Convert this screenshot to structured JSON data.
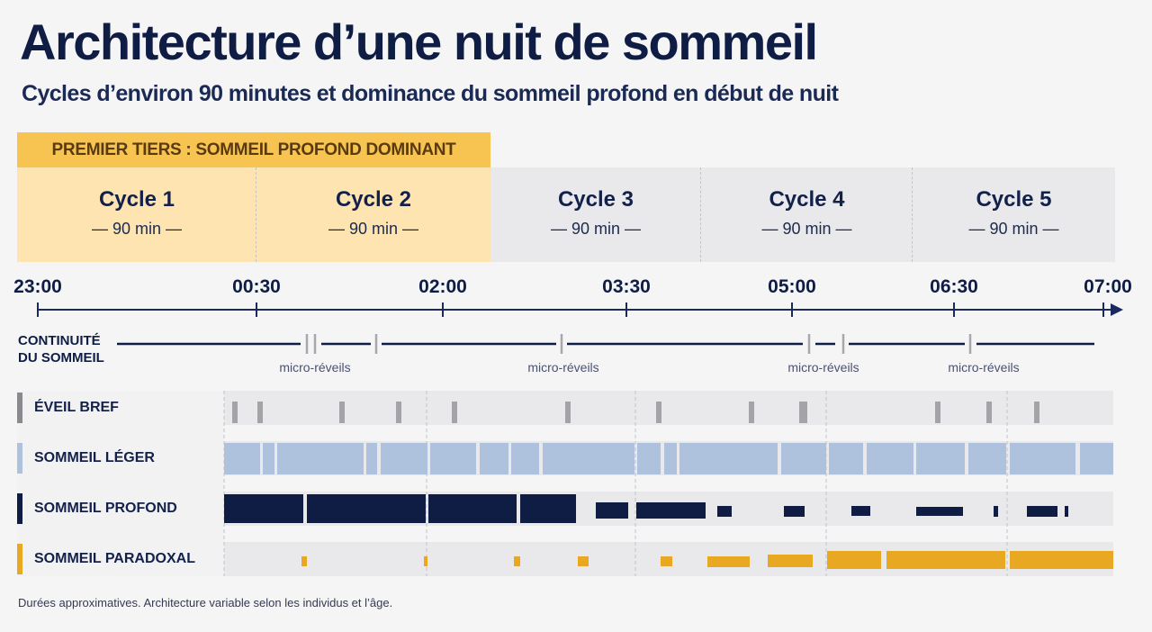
{
  "title": "Architecture d’une nuit de sommeil",
  "subtitle": "Cycles d’environ 90 minutes et dominance du sommeil profond en début de nuit",
  "tier_banner": "PREMIER TIERS : SOMMEIL PROFOND DOMINANT",
  "cycles": [
    {
      "name": "Cycle 1",
      "duration": "— 90 min —",
      "highlighted": true
    },
    {
      "name": "Cycle 2",
      "duration": "— 90 min —",
      "highlighted": true
    },
    {
      "name": "Cycle 3",
      "duration": "— 90 min —",
      "highlighted": false
    },
    {
      "name": "Cycle 4",
      "duration": "— 90 min —",
      "highlighted": false
    },
    {
      "name": "Cycle 5",
      "duration": "— 90 min —",
      "highlighted": false
    }
  ],
  "timeline": [
    "23:00",
    "00:30",
    "02:00",
    "03:30",
    "05:00",
    "06:30",
    "07:00"
  ],
  "continuity": {
    "label_line1": "CONTINUITÉ",
    "label_line2": "DU SOMMEIL",
    "micro_label": "micro-réveils",
    "micro_count": 4
  },
  "stages": [
    {
      "key": "wake",
      "label": "ÉVEIL BREF",
      "color": "#8a8a8e"
    },
    {
      "key": "light",
      "label": "SOMMEIL LÉGER",
      "color": "#afc2dd"
    },
    {
      "key": "deep",
      "label": "SOMMEIL PROFOND",
      "color": "#0f1d45"
    },
    {
      "key": "rem",
      "label": "SOMMEIL PARADOXAL",
      "color": "#e8a822"
    }
  ],
  "colors": {
    "background": "#f5f5f6",
    "tier_banner": "#f7c452",
    "cycle_highlight": "#fde4b0",
    "cycle_normal": "#e9e9eb",
    "axis": "#1a2a5e"
  },
  "footnote": "Durées approximatives. Architecture variable selon les individus et l’âge."
}
